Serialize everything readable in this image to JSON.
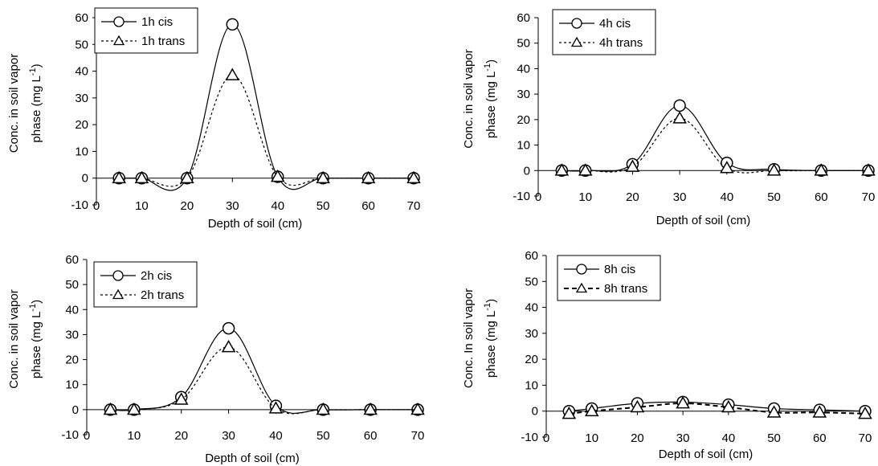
{
  "chart_data": [
    {
      "type": "line",
      "ylabel_line1": "Conc. in  soil vapor",
      "ylabel_line2": "phase (mg L",
      "ylabel_sup": "-1",
      "ylabel_close": ")",
      "xlabel": "Depth of soil  (cm)",
      "xlim": [
        0,
        70
      ],
      "ylim": [
        -10,
        60
      ],
      "x_ticks": [
        "0",
        "10",
        "20",
        "30",
        "40",
        "50",
        "60",
        "70"
      ],
      "y_ticks": [
        "-10",
        "0",
        "10",
        "20",
        "30",
        "40",
        "50",
        "60"
      ],
      "x": [
        5,
        10,
        20,
        30,
        40,
        50,
        60,
        70
      ],
      "series": [
        {
          "name": "1h cis",
          "marker": "circle",
          "line": "solid",
          "values": [
            0,
            0,
            0,
            57.5,
            0.5,
            0,
            0,
            0
          ]
        },
        {
          "name": "1h trans",
          "marker": "triangle",
          "line": "dotted",
          "values": [
            0,
            0,
            0,
            38.5,
            0.5,
            0,
            0,
            0
          ]
        }
      ],
      "legend": "top-left"
    },
    {
      "type": "line",
      "ylabel_line1": "Conc. in soil vapor",
      "ylabel_line2": "phase (mg L",
      "ylabel_sup": "-1",
      "ylabel_close": ")",
      "xlabel": "Depth of soil (cm)",
      "xlim": [
        0,
        70
      ],
      "ylim": [
        -10,
        60
      ],
      "x_ticks": [
        "0",
        "10",
        "20",
        "30",
        "40",
        "50",
        "60",
        "70"
      ],
      "y_ticks": [
        "-10",
        "0",
        "10",
        "20",
        "30",
        "40",
        "50",
        "60"
      ],
      "x": [
        5,
        10,
        20,
        30,
        40,
        50,
        60,
        70
      ],
      "series": [
        {
          "name": "4h cis",
          "marker": "circle",
          "line": "solid",
          "values": [
            0,
            0,
            2.5,
            25.5,
            3,
            0.5,
            0,
            0
          ]
        },
        {
          "name": "4h trans",
          "marker": "triangle",
          "line": "dotted",
          "values": [
            0,
            0,
            1.5,
            20.5,
            1,
            0,
            0,
            0
          ]
        }
      ],
      "legend": "top-left"
    },
    {
      "type": "line",
      "ylabel_line1": "Conc. in soil vapor",
      "ylabel_line2": "phase (mg L",
      "ylabel_sup": "-1",
      "ylabel_close": ")",
      "xlabel": "Depth  of soil (cm)",
      "xlim": [
        0,
        70
      ],
      "ylim": [
        -10,
        60
      ],
      "x_ticks": [
        "0",
        "10",
        "20",
        "30",
        "40",
        "50",
        "60",
        "70"
      ],
      "y_ticks": [
        "-10",
        "0",
        "10",
        "20",
        "30",
        "40",
        "50",
        "60"
      ],
      "x": [
        5,
        10,
        20,
        30,
        40,
        50,
        60,
        70
      ],
      "series": [
        {
          "name": "2h cis",
          "marker": "circle",
          "line": "solid",
          "values": [
            0,
            0,
            5,
            32.5,
            1.5,
            0,
            0,
            0
          ]
        },
        {
          "name": "2h trans",
          "marker": "triangle",
          "line": "dotted",
          "values": [
            0,
            0,
            4,
            25,
            0.5,
            0,
            0,
            0
          ]
        }
      ],
      "legend": "top-left"
    },
    {
      "type": "line",
      "ylabel_line1": "Conc. In soil vapor",
      "ylabel_line2": "phase (mg L",
      "ylabel_sup": "-1",
      "ylabel_close": ")",
      "xlabel": "Depth of soil (cm)",
      "xlim": [
        0,
        70
      ],
      "ylim": [
        -10,
        60
      ],
      "x_ticks": [
        "0",
        "10",
        "20",
        "30",
        "40",
        "50",
        "60",
        "70"
      ],
      "y_ticks": [
        "-10",
        "0",
        "10",
        "20",
        "30",
        "40",
        "50",
        "60"
      ],
      "x": [
        5,
        10,
        20,
        30,
        40,
        50,
        60,
        70
      ],
      "series": [
        {
          "name": "8h cis",
          "marker": "circle",
          "line": "solid",
          "values": [
            0,
            1,
            3,
            3.5,
            2.5,
            1,
            0.5,
            0
          ]
        },
        {
          "name": "8h trans",
          "marker": "triangle",
          "line": "dashed",
          "values": [
            -1,
            0,
            1.5,
            3,
            1.5,
            -0.5,
            -0.5,
            -1
          ]
        }
      ],
      "legend": "top-left"
    }
  ]
}
